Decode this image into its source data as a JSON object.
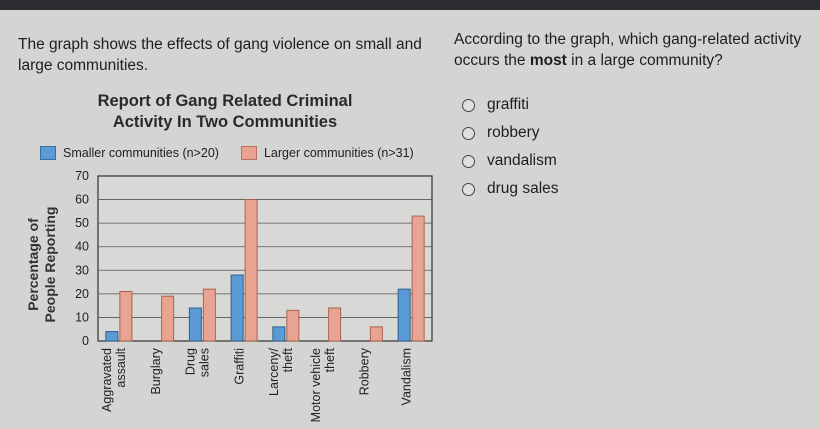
{
  "question": {
    "text_part1": "The graph shows the effects of gang violence on small and large communities."
  },
  "prompt": {
    "before": "According to the graph, which gang-related activity occurs the ",
    "emphasis": "most",
    "after": " in a large community?"
  },
  "options": [
    {
      "label": "graffiti"
    },
    {
      "label": "robbery"
    },
    {
      "label": "vandalism"
    },
    {
      "label": "drug sales"
    }
  ],
  "colors": {
    "small": "#5b9bd5",
    "large": "#e8a491"
  },
  "chart_data": {
    "type": "bar",
    "title_line1": "Report of Gang Related Criminal",
    "title_line2": "Activity In Two Communities",
    "legend": {
      "small": "Smaller communities (n>20)",
      "large": "Larger communities (n>31)"
    },
    "ylabel_line1": "Percentage of",
    "ylabel_line2": "People Reporting",
    "ylim": [
      0,
      70
    ],
    "yticks": [
      "0",
      "10",
      "20",
      "30",
      "40",
      "50",
      "60",
      "70"
    ],
    "categories": [
      [
        "Aggravated",
        "assault"
      ],
      [
        "Burglary"
      ],
      [
        "Drug",
        "sales"
      ],
      [
        "Graffiti"
      ],
      [
        "Larceny/",
        "theft"
      ],
      [
        "Motor vehicle",
        "theft"
      ],
      [
        "Robbery"
      ],
      [
        "Vandalism"
      ]
    ],
    "series": [
      {
        "name": "Smaller communities (n>20)",
        "values": [
          4,
          0,
          14,
          28,
          6,
          0,
          0,
          22
        ]
      },
      {
        "name": "Larger communities (n>31)",
        "values": [
          21,
          19,
          22,
          60,
          13,
          14,
          6,
          53
        ]
      }
    ],
    "grid": true
  }
}
